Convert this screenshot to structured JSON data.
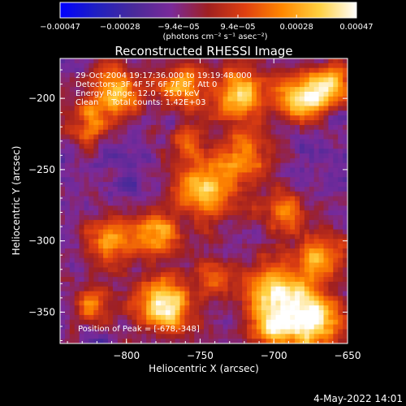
{
  "chart_data": {
    "type": "heatmap",
    "title": "Reconstructed RHESSI Image",
    "xlabel": "Heliocentric X (arcsec)",
    "ylabel": "Heliocentric Y (arcsec)",
    "xlim": [
      -845,
      -650
    ],
    "ylim": [
      -372,
      -172
    ],
    "xticks": [
      -800,
      -750,
      -700,
      -650
    ],
    "yticks": [
      -350,
      -300,
      -250,
      -200
    ],
    "xtick_labels": [
      "−800",
      "−750",
      "−700",
      "−650"
    ],
    "ytick_labels": [
      "−350",
      "−300",
      "−250",
      "−200"
    ],
    "colorbar": {
      "range": [
        -0.00047,
        0.00047
      ],
      "tick_values": [
        -0.00047,
        -0.00028,
        -9.4e-05,
        9.4e-05,
        0.00028,
        0.00047
      ],
      "tick_labels": [
        "−0.00047",
        "−0.00028",
        "−9.4e−05",
        "9.4e−05",
        "0.00028",
        "0.00047"
      ],
      "unit_label": "(photons cm⁻² s⁻¹ asec⁻²)",
      "stops": [
        "#0000ff",
        "#2020c0",
        "#4a2a9a",
        "#7a2a9a",
        "#a02020",
        "#e04010",
        "#ff8800",
        "#ffd040",
        "#ffffff"
      ]
    },
    "annotations": [
      "29-Oct-2004 19:17:36.000 to 19:19:48.000",
      "Detectors: 3F 4F 5F 6F 7F 8F, Att 0",
      "Energy Range: 12.0 - 25.0 keV",
      "Clean     Total counts: 1.42E+03"
    ],
    "peak_label": "Position of Peak = [-678,-348]",
    "peak": {
      "x": -678,
      "y": -348
    },
    "sources": [
      {
        "x": -775,
        "y": -346,
        "s": 14,
        "a": 1.0
      },
      {
        "x": -675,
        "y": -355,
        "s": 16,
        "a": 1.0
      },
      {
        "x": -700,
        "y": -335,
        "s": 14,
        "a": 0.85
      },
      {
        "x": -668,
        "y": -310,
        "s": 12,
        "a": 0.6
      },
      {
        "x": -808,
        "y": -195,
        "s": 13,
        "a": 0.8
      },
      {
        "x": -763,
        "y": -192,
        "s": 11,
        "a": 0.75
      },
      {
        "x": -723,
        "y": -197,
        "s": 14,
        "a": 0.85
      },
      {
        "x": -680,
        "y": -200,
        "s": 12,
        "a": 0.9
      },
      {
        "x": -660,
        "y": -190,
        "s": 10,
        "a": 0.75
      },
      {
        "x": -745,
        "y": -265,
        "s": 16,
        "a": 0.8
      },
      {
        "x": -720,
        "y": -240,
        "s": 13,
        "a": 0.6
      },
      {
        "x": -780,
        "y": -295,
        "s": 12,
        "a": 0.65
      },
      {
        "x": -812,
        "y": -300,
        "s": 12,
        "a": 0.65
      },
      {
        "x": -822,
        "y": -345,
        "s": 10,
        "a": 0.6
      },
      {
        "x": -825,
        "y": -218,
        "s": 10,
        "a": 0.55
      },
      {
        "x": -695,
        "y": -280,
        "s": 12,
        "a": 0.55
      },
      {
        "x": -760,
        "y": -230,
        "s": 10,
        "a": 0.4
      },
      {
        "x": -702,
        "y": -362,
        "s": 10,
        "a": 0.65
      },
      {
        "x": -740,
        "y": -325,
        "s": 10,
        "a": 0.5
      }
    ]
  },
  "footer": {
    "date": "4-May-2022 14:01"
  }
}
